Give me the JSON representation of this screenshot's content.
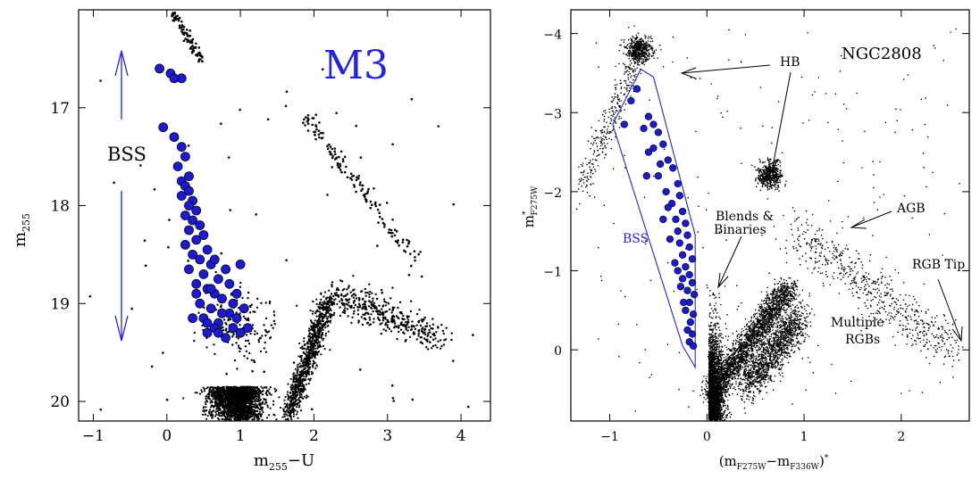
{
  "colors": {
    "bss_fill": "#1c1ccc",
    "bss_stroke": "#000033",
    "annotation_blue": "#2323e6",
    "stars": "#000000"
  },
  "chart_data": [
    {
      "type": "scatter",
      "panel": "left",
      "title": "M3",
      "xlabel": "m255−U",
      "ylabel": "m255",
      "xlim": [
        -1.2,
        4.4
      ],
      "ylim": [
        20.2,
        16.0
      ],
      "y_inverted": true,
      "grid": false,
      "x_ticks": [
        "−1",
        "0",
        "1",
        "2",
        "3",
        "4"
      ],
      "y_ticks": [
        "17",
        "18",
        "19",
        "20"
      ],
      "annotation": {
        "text": "BSS",
        "arrow": "double-headed vertical",
        "from_y": 16.5,
        "to_y": 19.4,
        "at_x": -0.55
      },
      "series": [
        {
          "name": "BSS",
          "marker": "large filled blue circle",
          "points": [
            [
              -0.1,
              16.6
            ],
            [
              0.05,
              16.65
            ],
            [
              0.2,
              16.7
            ],
            [
              0.1,
              16.7
            ],
            [
              -0.05,
              17.2
            ],
            [
              0.1,
              17.3
            ],
            [
              0.2,
              17.4
            ],
            [
              0.25,
              17.5
            ],
            [
              0.15,
              17.6
            ],
            [
              0.3,
              17.7
            ],
            [
              0.2,
              17.75
            ],
            [
              0.25,
              17.8
            ],
            [
              0.3,
              17.85
            ],
            [
              0.2,
              17.9
            ],
            [
              0.35,
              17.95
            ],
            [
              0.3,
              18.0
            ],
            [
              0.4,
              18.05
            ],
            [
              0.25,
              18.1
            ],
            [
              0.35,
              18.15
            ],
            [
              0.45,
              18.2
            ],
            [
              0.3,
              18.25
            ],
            [
              0.5,
              18.3
            ],
            [
              0.4,
              18.35
            ],
            [
              0.25,
              18.4
            ],
            [
              0.55,
              18.45
            ],
            [
              0.35,
              18.5
            ],
            [
              0.45,
              18.55
            ],
            [
              0.6,
              18.6
            ],
            [
              0.3,
              18.65
            ],
            [
              0.5,
              18.7
            ],
            [
              0.7,
              18.75
            ],
            [
              0.4,
              18.8
            ],
            [
              0.55,
              18.85
            ],
            [
              0.65,
              18.9
            ],
            [
              0.75,
              18.95
            ],
            [
              0.45,
              19.0
            ],
            [
              0.6,
              19.05
            ],
            [
              0.85,
              19.1
            ],
            [
              0.5,
              19.15
            ],
            [
              0.7,
              19.2
            ],
            [
              0.9,
              19.25
            ],
            [
              0.55,
              19.3
            ],
            [
              0.8,
              19.35
            ],
            [
              1.0,
              19.3
            ],
            [
              0.65,
              19.25
            ],
            [
              0.95,
              19.15
            ],
            [
              1.1,
              19.25
            ],
            [
              0.75,
              19.1
            ],
            [
              0.95,
              18.9
            ],
            [
              1.05,
              19.05
            ],
            [
              0.35,
              19.15
            ],
            [
              0.6,
              18.85
            ],
            [
              0.85,
              18.8
            ],
            [
              1.0,
              18.6
            ],
            [
              0.8,
              18.65
            ],
            [
              0.65,
              18.55
            ],
            [
              0.4,
              18.9
            ],
            [
              0.55,
              19.2
            ],
            [
              0.7,
              19.3
            ],
            [
              0.9,
              19.0
            ]
          ]
        },
        {
          "name": "",
          "marker": "small black dot",
          "note": "field stars, sampled"
        }
      ]
    },
    {
      "type": "scatter",
      "panel": "right",
      "title": "NGC2808",
      "xlabel": "(mF275W−mF336W)*",
      "ylabel": "m*F275W",
      "xlim": [
        -1.4,
        2.7
      ],
      "ylim": [
        0.9,
        -4.3
      ],
      "y_inverted": true,
      "grid": false,
      "x_ticks": [
        "−1",
        "0",
        "1",
        "2"
      ],
      "y_ticks": [
        "−4",
        "−3",
        "−2",
        "−1",
        "0"
      ],
      "bss_box": [
        [
          -0.97,
          -2.85
        ],
        [
          -0.68,
          -3.55
        ],
        [
          -0.55,
          -3.45
        ],
        [
          -0.12,
          -1.45
        ],
        [
          -0.12,
          0.22
        ],
        [
          -0.25,
          -0.05
        ]
      ],
      "annotations": [
        "HB",
        "AGB",
        "RGB Tip",
        "Blends &",
        "Binaries",
        "Multiple",
        "RGBs",
        "BSS"
      ],
      "series": [
        {
          "name": "BSS",
          "marker": "large filled blue circle",
          "points": [
            [
              -0.72,
              -3.3
            ],
            [
              -0.78,
              -3.15
            ],
            [
              -0.6,
              -2.95
            ],
            [
              -0.55,
              -2.85
            ],
            [
              -0.5,
              -2.75
            ],
            [
              -0.65,
              -2.8
            ],
            [
              -0.45,
              -2.6
            ],
            [
              -0.55,
              -2.55
            ],
            [
              -0.4,
              -2.4
            ],
            [
              -0.35,
              -2.3
            ],
            [
              -0.5,
              -2.2
            ],
            [
              -0.3,
              -2.1
            ],
            [
              -0.42,
              -2.0
            ],
            [
              -0.28,
              -1.95
            ],
            [
              -0.36,
              -1.85
            ],
            [
              -0.25,
              -1.75
            ],
            [
              -0.32,
              -1.65
            ],
            [
              -0.22,
              -1.6
            ],
            [
              -0.3,
              -1.5
            ],
            [
              -0.2,
              -1.45
            ],
            [
              -0.28,
              -1.35
            ],
            [
              -0.18,
              -1.3
            ],
            [
              -0.25,
              -1.2
            ],
            [
              -0.15,
              -1.15
            ],
            [
              -0.22,
              -1.05
            ],
            [
              -0.18,
              -0.95
            ],
            [
              -0.25,
              -0.9
            ],
            [
              -0.15,
              -0.85
            ],
            [
              -0.2,
              -0.75
            ],
            [
              -0.13,
              -0.7
            ],
            [
              -0.18,
              -0.6
            ],
            [
              -0.22,
              -0.5
            ],
            [
              -0.14,
              -0.45
            ],
            [
              -0.17,
              -0.35
            ],
            [
              -0.2,
              -0.25
            ],
            [
              -0.15,
              -0.2
            ],
            [
              -0.18,
              -0.1
            ],
            [
              -0.14,
              -0.05
            ],
            [
              -0.45,
              -1.65
            ],
            [
              -0.38,
              -1.4
            ],
            [
              -0.33,
              -1.1
            ],
            [
              -0.27,
              -0.8
            ],
            [
              -0.4,
              -1.8
            ],
            [
              -0.48,
              -2.35
            ],
            [
              -0.6,
              -2.5
            ],
            [
              -0.85,
              -2.85
            ],
            [
              -0.62,
              -2.2
            ],
            [
              -0.3,
              -1.0
            ],
            [
              -0.24,
              -0.6
            ]
          ]
        },
        {
          "name": "",
          "marker": "small black dot",
          "note": "cluster stars, sampled"
        }
      ]
    }
  ]
}
